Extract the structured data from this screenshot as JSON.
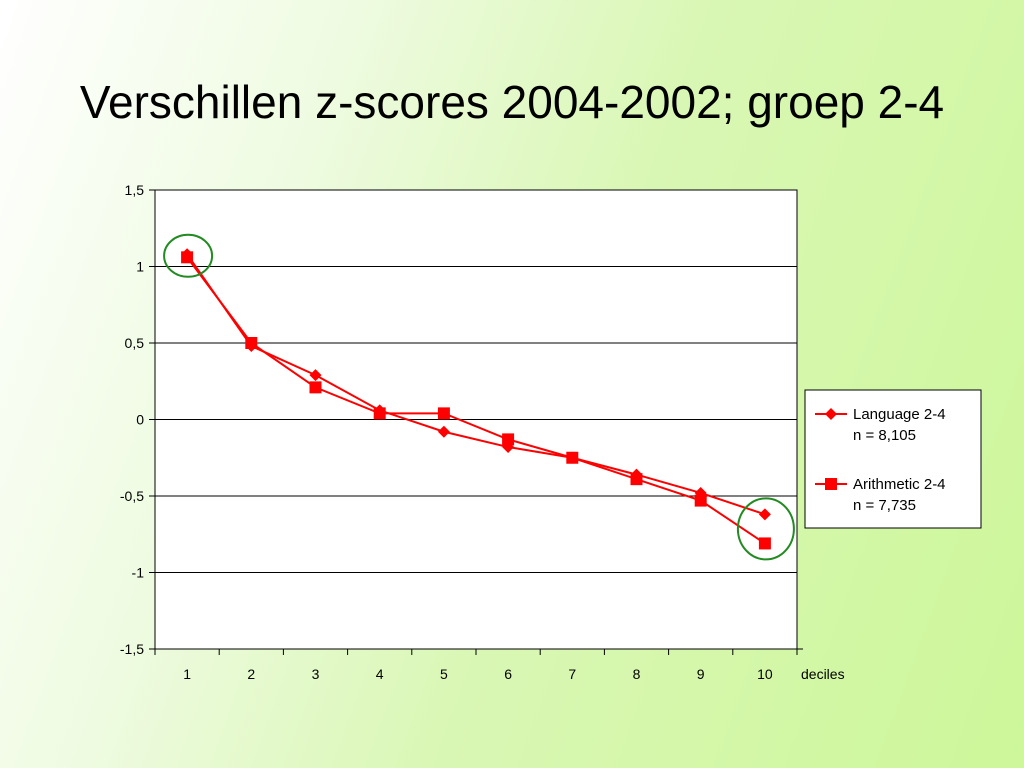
{
  "slide": {
    "title": "Verschillen z-scores 2004-2002; groep 2-4"
  },
  "chart_data": {
    "type": "line",
    "title": "",
    "xlabel": "deciles",
    "ylabel": "",
    "x": [
      1,
      2,
      3,
      4,
      5,
      6,
      7,
      8,
      9,
      10
    ],
    "x_tick_labels": [
      "1",
      "2",
      "3",
      "4",
      "5",
      "6",
      "7",
      "8",
      "9",
      "10"
    ],
    "ylim": [
      -1.5,
      1.5
    ],
    "y_ticks": [
      1.5,
      1,
      0.5,
      0,
      -0.5,
      -1,
      -1.5
    ],
    "y_tick_labels": [
      "1,5",
      "1",
      "0,5",
      "0",
      "-0,5",
      "-1",
      "-1,5"
    ],
    "grid": "horizontal",
    "legend_placement": "right",
    "series": [
      {
        "name": "Language 2-4",
        "name_line2": "n = 8,105",
        "marker": "diamond",
        "color": "#ff0000",
        "values": [
          1.08,
          0.48,
          0.29,
          0.06,
          -0.08,
          -0.18,
          -0.25,
          -0.36,
          -0.48,
          -0.62
        ]
      },
      {
        "name": "Arithmetic 2-4",
        "name_line2": "n = 7,735",
        "marker": "square",
        "color": "#ff0000",
        "values": [
          1.06,
          0.5,
          0.21,
          0.04,
          0.04,
          -0.13,
          -0.25,
          -0.39,
          -0.53,
          -0.81
        ]
      }
    ],
    "highlights": [
      {
        "x": 1,
        "shape": "ellipse",
        "color": "#228b22"
      },
      {
        "x": 10,
        "shape": "ellipse",
        "color": "#228b22"
      }
    ]
  }
}
